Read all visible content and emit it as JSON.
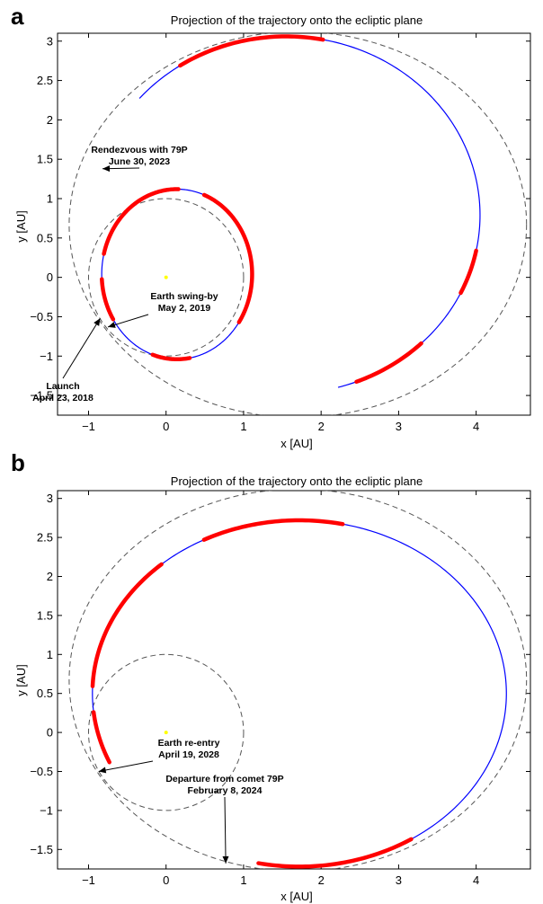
{
  "chart_data": [
    {
      "type": "line",
      "panel_label": "a",
      "title": "Projection of the trajectory onto the ecliptic plane",
      "xlabel": "x [AU]",
      "ylabel": "y [AU]",
      "xlim": [
        -1.4,
        4.7
      ],
      "ylim": [
        -1.75,
        3.1
      ],
      "xticks": [
        -1,
        0,
        1,
        2,
        3,
        4
      ],
      "yticks": [
        -1.5,
        -1,
        -0.5,
        0,
        0.5,
        1,
        1.5,
        2,
        2.5,
        3
      ],
      "grid": false,
      "sun": {
        "x": 0,
        "y": 0,
        "color": "#ffff00"
      },
      "orbits": [
        {
          "kind": "earth-orbit",
          "cx": 0,
          "cy": 0,
          "rx": 1.0,
          "ry": 1.0,
          "color": "#555555"
        },
        {
          "kind": "comet-79P-orbit",
          "cx": 1.7,
          "cy": 0.67,
          "rx": 2.95,
          "ry": 2.45,
          "color": "#555555"
        }
      ],
      "trajectory": [
        {
          "kind": "transfer-spiral",
          "cx": 0.14,
          "cy": 0.04,
          "rx": 0.97,
          "ry": 1.08,
          "t_start": -2.2,
          "t_end": 4.2,
          "color": "#0000ff",
          "thrust_arcs": [
            [
              -1.9,
              -1.4
            ],
            [
              -0.6,
              1.2
            ],
            [
              1.55,
              2.9
            ],
            [
              3.2,
              3.7
            ]
          ]
        },
        {
          "kind": "outbound-arc",
          "cx": 1.55,
          "cy": 0.79,
          "rx": 2.5,
          "ry": 2.27,
          "t_start": -1.3,
          "t_end": 2.43,
          "color": "#0000ff",
          "thrust_arcs": [
            [
              -1.2,
              -0.8
            ],
            [
              -0.45,
              -0.2
            ],
            [
              1.38,
              2.15
            ]
          ]
        }
      ],
      "annotations": [
        {
          "lines": [
            "Rendezvous with 79P",
            "June 30, 2023"
          ],
          "point": [
            -0.82,
            1.38
          ]
        },
        {
          "lines": [
            "Earth swing-by",
            "May 2, 2019"
          ],
          "point": [
            -0.75,
            -0.63
          ]
        },
        {
          "lines": [
            "Launch",
            "April 23, 2018"
          ],
          "point": [
            -0.85,
            -0.52
          ]
        }
      ]
    },
    {
      "type": "line",
      "panel_label": "b",
      "title": "Projection of the trajectory onto the ecliptic plane",
      "xlabel": "x [AU]",
      "ylabel": "y [AU]",
      "xlim": [
        -1.4,
        4.7
      ],
      "ylim": [
        -1.75,
        3.1
      ],
      "xticks": [
        -1,
        0,
        1,
        2,
        3,
        4
      ],
      "yticks": [
        -1.5,
        -1,
        -0.5,
        0,
        0.5,
        1,
        1.5,
        2,
        2.5,
        3
      ],
      "grid": false,
      "sun": {
        "x": 0,
        "y": 0,
        "color": "#ffff00"
      },
      "orbits": [
        {
          "kind": "earth-orbit",
          "cx": 0,
          "cy": 0,
          "rx": 1.0,
          "ry": 1.0,
          "color": "#555555"
        },
        {
          "kind": "comet-79P-orbit",
          "cx": 1.7,
          "cy": 0.67,
          "rx": 2.95,
          "ry": 2.45,
          "color": "#555555"
        }
      ],
      "trajectory": [
        {
          "kind": "return-arc",
          "cx": 1.72,
          "cy": 0.5,
          "rx": 2.67,
          "ry": 2.22,
          "t_start": -1.77,
          "t_end": 3.55,
          "color": "#0000ff",
          "thrust_arcs": [
            [
              -1.77,
              -1.0
            ],
            [
              1.36,
              2.05
            ],
            [
              2.3,
              3.1
            ],
            [
              3.25,
              3.55
            ]
          ]
        }
      ],
      "annotations": [
        {
          "lines": [
            "Earth re-entry",
            "April 19, 2028"
          ],
          "point": [
            -0.87,
            -0.5
          ]
        },
        {
          "lines": [
            "Departure from comet 79P",
            "February 8, 2024"
          ],
          "point": [
            0.77,
            -1.68
          ]
        }
      ]
    }
  ]
}
